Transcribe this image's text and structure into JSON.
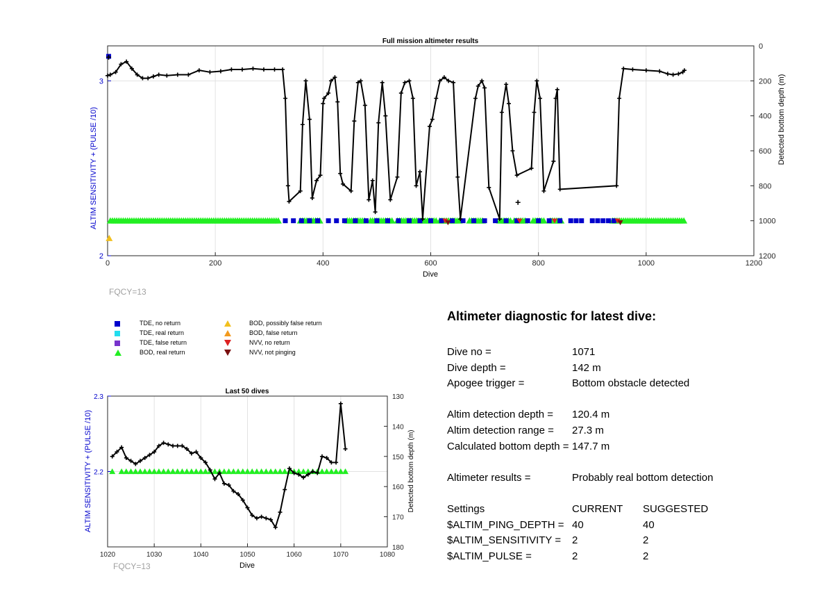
{
  "fqcy_label": "FQCY=13",
  "chart_data": [
    {
      "type": "line",
      "title": "Full mission altimeter results",
      "xlabel": "Dive",
      "ylabel_left": "ALTIM SENSITIVITY + (PULSE /10)",
      "ylabel_right": "Detected bottom depth (m)",
      "xlim": [
        0,
        1200
      ],
      "ylim_left": [
        2,
        3.2
      ],
      "ylim_right": [
        0,
        1200
      ],
      "right_axis_reversed": true,
      "xticks": [
        0,
        200,
        400,
        600,
        800,
        1000,
        1200
      ],
      "yticks_left": [
        2,
        3
      ],
      "yticks_right": [
        0,
        200,
        400,
        600,
        800,
        1000,
        1200
      ],
      "grid": true,
      "bottom_depth_series": {
        "name": "Detected bottom depth",
        "x": [
          0,
          5,
          15,
          25,
          35,
          45,
          55,
          65,
          75,
          85,
          95,
          110,
          130,
          150,
          170,
          190,
          210,
          230,
          250,
          270,
          290,
          310,
          325,
          330,
          335,
          337,
          358,
          362,
          368,
          375,
          380,
          388,
          395,
          400,
          402,
          410,
          415,
          422,
          427,
          432,
          437,
          452,
          458,
          465,
          470,
          478,
          485,
          492,
          497,
          503,
          510,
          516,
          525,
          538,
          545,
          552,
          560,
          567,
          573,
          580,
          585,
          598,
          603,
          610,
          617,
          625,
          633,
          642,
          650,
          655,
          683,
          688,
          695,
          700,
          708,
          728,
          732,
          740,
          745,
          752,
          760,
          787,
          792,
          797,
          803,
          810,
          828,
          832,
          835,
          840,
          945,
          950,
          958,
          975,
          1000,
          1025,
          1040,
          1050,
          1060,
          1068,
          1071
        ],
        "y": [
          170,
          165,
          150,
          105,
          90,
          130,
          165,
          185,
          185,
          175,
          165,
          170,
          165,
          165,
          140,
          150,
          145,
          135,
          135,
          130,
          135,
          135,
          135,
          300,
          800,
          890,
          830,
          450,
          200,
          420,
          870,
          770,
          740,
          330,
          300,
          270,
          200,
          180,
          320,
          730,
          790,
          830,
          430,
          210,
          200,
          340,
          880,
          770,
          950,
          440,
          210,
          400,
          880,
          750,
          270,
          210,
          200,
          300,
          800,
          720,
          990,
          460,
          420,
          300,
          200,
          180,
          200,
          210,
          750,
          990,
          300,
          230,
          200,
          240,
          810,
          990,
          380,
          220,
          330,
          600,
          740,
          700,
          380,
          200,
          300,
          830,
          660,
          300,
          250,
          820,
          800,
          300,
          130,
          135,
          140,
          145,
          160,
          165,
          160,
          150,
          140
        ]
      },
      "real_return_markers": {
        "name": "BOD, real return",
        "depth_value": 1000,
        "segments": [
          [
            5,
            320
          ],
          [
            358,
            395
          ],
          [
            445,
            480
          ],
          [
            488,
            530
          ],
          [
            538,
            612
          ],
          [
            617,
            655
          ],
          [
            672,
            698
          ],
          [
            728,
            748
          ],
          [
            755,
            775
          ],
          [
            790,
            812
          ],
          [
            822,
            842
          ],
          [
            938,
            1072
          ]
        ]
      },
      "no_return_markers": {
        "name": "TDE, no return",
        "depth_value": 1000,
        "x": [
          330,
          345,
          360,
          375,
          390,
          410,
          425,
          440,
          460,
          480,
          500,
          520,
          540,
          560,
          580,
          600,
          620,
          640,
          660,
          680,
          700,
          720,
          740,
          760,
          780,
          800,
          820,
          840,
          860,
          870,
          880,
          900,
          910,
          920,
          930,
          940
        ],
        "extra_points": [
          [
            2,
            3.14
          ]
        ]
      },
      "possibly_false_points": [
        [
          3,
          2.1
        ]
      ],
      "nvv_no_return_points": [
        [
          627,
          1000
        ],
        [
          765,
          1000
        ],
        [
          830,
          1000
        ],
        [
          947,
          1000
        ]
      ],
      "nvv_not_pinging_points": [
        [
          632,
          1010
        ],
        [
          952,
          1010
        ]
      ],
      "outlier_points": [
        [
          762,
          895
        ],
        [
          2,
          65
        ]
      ]
    },
    {
      "type": "line",
      "title": "Last 50 dives",
      "xlabel": "Dive",
      "ylabel_left": "ALTIM SENSITIVITY + (PULSE /10)",
      "ylabel_right": "Detected bottom depth (m)",
      "xlim": [
        1020,
        1080
      ],
      "ylim_left": [
        2.1,
        2.3
      ],
      "ylim_right": [
        130,
        180
      ],
      "right_axis_reversed": true,
      "xticks": [
        1020,
        1030,
        1040,
        1050,
        1060,
        1070,
        1080
      ],
      "yticks_left": [
        2.2,
        2.3
      ],
      "yticks_right": [
        130,
        140,
        150,
        160,
        170,
        180
      ],
      "grid": true,
      "bottom_depth_series": {
        "name": "Detected bottom depth",
        "x": [
          1021,
          1022,
          1023,
          1024,
          1025,
          1026,
          1027,
          1028,
          1029,
          1030,
          1031,
          1032,
          1033,
          1034,
          1035,
          1036,
          1037,
          1038,
          1039,
          1040,
          1041,
          1042,
          1043,
          1044,
          1045,
          1046,
          1047,
          1048,
          1049,
          1050,
          1051,
          1052,
          1053,
          1054,
          1055,
          1056,
          1057,
          1058,
          1059,
          1060,
          1061,
          1062,
          1063,
          1064,
          1065,
          1066,
          1067,
          1068,
          1069,
          1070,
          1071
        ],
        "y": [
          150,
          148.5,
          147,
          150.5,
          151.5,
          152.5,
          151.5,
          150.5,
          149.5,
          148.5,
          146.5,
          145.5,
          146,
          146.5,
          146.5,
          146.5,
          147.5,
          149,
          148.5,
          150.5,
          152,
          154.5,
          157.5,
          155.5,
          159,
          159.5,
          161.5,
          162.5,
          164.5,
          167,
          169.5,
          170.5,
          170,
          170.5,
          171,
          173.5,
          168.5,
          161,
          154,
          155.5,
          156,
          157,
          156,
          155,
          155.5,
          150,
          150.5,
          152,
          152,
          132.5,
          147.5
        ]
      },
      "real_return_markers": {
        "name": "BOD, real return",
        "depth_value": 155,
        "x": [
          1021,
          1023,
          1024,
          1025,
          1026,
          1027,
          1028,
          1029,
          1030,
          1031,
          1032,
          1033,
          1034,
          1035,
          1036,
          1037,
          1038,
          1039,
          1040,
          1041,
          1042,
          1043,
          1044,
          1045,
          1046,
          1047,
          1048,
          1049,
          1050,
          1051,
          1052,
          1053,
          1054,
          1055,
          1056,
          1057,
          1058,
          1059,
          1060,
          1061,
          1062,
          1063,
          1064,
          1065,
          1066,
          1067,
          1068,
          1069,
          1070,
          1071
        ]
      }
    }
  ],
  "legend": {
    "items": [
      {
        "label": "TDE, no return",
        "color": "#0000cc",
        "shape": "square"
      },
      {
        "label": "TDE, real return",
        "color": "#22ddee",
        "shape": "square"
      },
      {
        "label": "TDE, false return",
        "color": "#7733cc",
        "shape": "square"
      },
      {
        "label": "BOD, real return",
        "color": "#22ee22",
        "shape": "triangle-up"
      },
      {
        "label": "BOD, possibly false return",
        "color": "#f2c01e",
        "shape": "triangle-up"
      },
      {
        "label": "BOD, false return",
        "color": "#f29a1e",
        "shape": "triangle-up"
      },
      {
        "label": "NVV, no return",
        "color": "#dd2222",
        "shape": "triangle-down"
      },
      {
        "label": "NVV, not pinging",
        "color": "#7a1010",
        "shape": "triangle-down"
      }
    ]
  },
  "diagnostic": {
    "title": "Altimeter diagnostic for latest dive:",
    "dive_no_label": "Dive no =",
    "dive_no": "1071",
    "dive_depth_label": "Dive depth =",
    "dive_depth": "142 m",
    "apogee_label": "Apogee trigger =",
    "apogee": "Bottom obstacle detected",
    "det_depth_label": "Altim detection depth =",
    "det_depth": "120.4 m",
    "det_range_label": "Altim detection range =",
    "det_range": "27.3 m",
    "calc_depth_label": "Calculated bottom depth =",
    "calc_depth": "147.7 m",
    "results_label": "Altimeter results =",
    "results": "Probably real bottom detection",
    "settings_label": "Settings",
    "current_label": "CURRENT",
    "suggested_label": "SUGGESTED",
    "settings": [
      {
        "name": "$ALTIM_PING_DEPTH =",
        "current": "40",
        "suggested": "40"
      },
      {
        "name": "$ALTIM_SENSITIVITY =",
        "current": "2",
        "suggested": "2"
      },
      {
        "name": "$ALTIM_PULSE =",
        "current": "2",
        "suggested": "2"
      }
    ]
  },
  "colors": {
    "left_axis": "#0000cc",
    "series": "#000000",
    "grid": "#dddddd",
    "fqcy": "#a0a0a0"
  }
}
